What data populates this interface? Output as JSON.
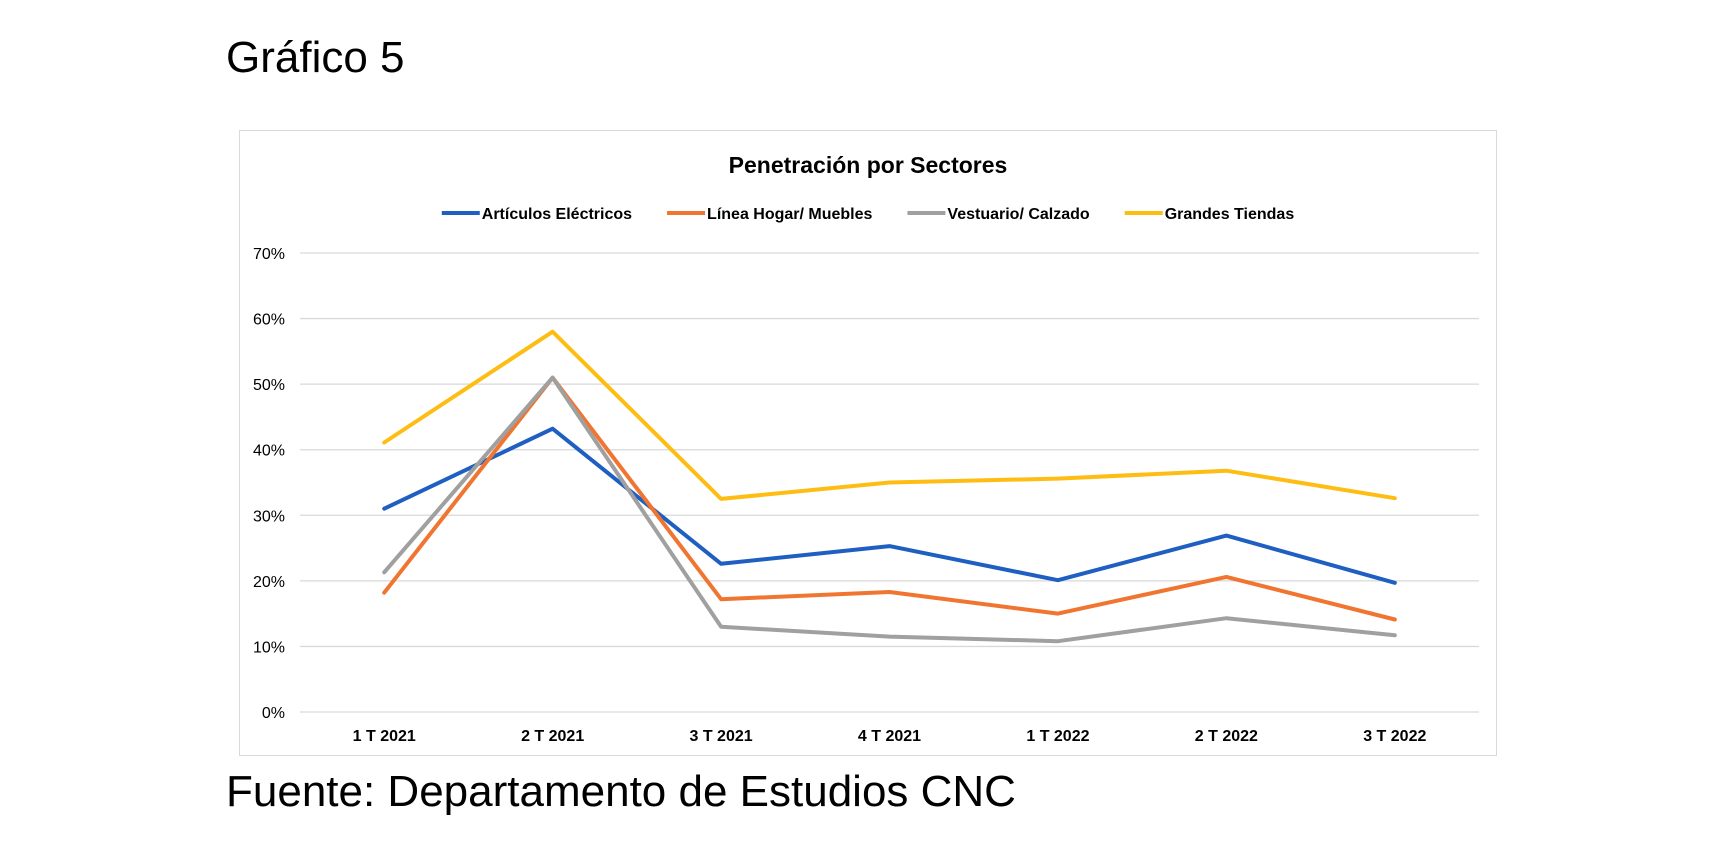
{
  "heading": "Gráfico 5",
  "source": "Fuente: Departamento de Estudios CNC",
  "chart_data": {
    "type": "line",
    "title": "Penetración por Sectores",
    "xlabel": "",
    "ylabel": "",
    "categories": [
      "1 T 2021",
      "2 T 2021",
      "3 T 2021",
      "4 T 2021",
      "1 T 2022",
      "2 T 2022",
      "3 T 2022"
    ],
    "ylim": [
      0,
      70
    ],
    "yticks": [
      "0%",
      "10%",
      "20%",
      "30%",
      "40%",
      "50%",
      "60%",
      "70%"
    ],
    "grid": true,
    "legend_position": "top",
    "series": [
      {
        "name": "Artículos Eléctricos",
        "color": "#1f5fc1",
        "values": [
          31,
          43.2,
          22.6,
          25.3,
          20.1,
          26.9,
          19.7
        ]
      },
      {
        "name": "Línea Hogar/ Muebles",
        "color": "#f07530",
        "values": [
          18.2,
          51,
          17.2,
          18.3,
          15,
          20.6,
          14.1
        ]
      },
      {
        "name": "Vestuario/ Calzado",
        "color": "#a0a0a0",
        "values": [
          21.3,
          51,
          13,
          11.5,
          10.8,
          14.3,
          11.7
        ]
      },
      {
        "name": "Grandes Tiendas",
        "color": "#fdbd13",
        "values": [
          41.1,
          58,
          32.5,
          35,
          35.6,
          36.8,
          32.6
        ]
      }
    ]
  }
}
